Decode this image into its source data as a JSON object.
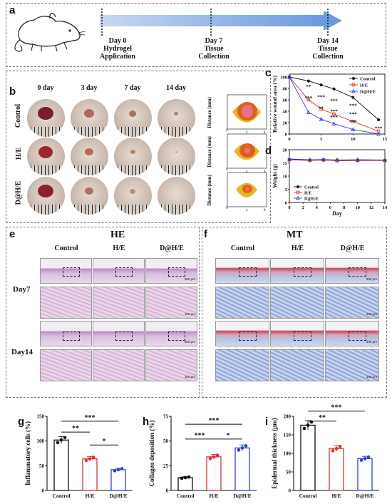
{
  "panels": {
    "a": "a",
    "b": "b",
    "c": "c",
    "d": "d",
    "e": "e",
    "f": "f",
    "g": "g",
    "h": "h",
    "i": "i"
  },
  "timeline": {
    "steps": [
      {
        "line1": "Day 0",
        "line2": "Hydrogel",
        "line3": "Application"
      },
      {
        "line1": "Day 7",
        "line2": "Tissue",
        "line3": "Collection"
      },
      {
        "line1": "Day 14",
        "line2": "Tissue",
        "line3": "Collection"
      }
    ]
  },
  "photos": {
    "cols": [
      "0 day",
      "3 day",
      "7 day",
      "14 day"
    ],
    "rows": [
      "Control",
      "H/E",
      "D@H/E"
    ],
    "contour_ylabel": "Distance (mm)",
    "contour_ticks": [
      "0",
      "4",
      "8"
    ]
  },
  "histology": {
    "he_title": "HE",
    "mt_title": "MT",
    "groups": [
      "Control",
      "H/E",
      "D@H/E"
    ],
    "days": [
      "Day7",
      "Day14"
    ],
    "scale_top": "300 μm",
    "scale_bottom": "100 μm"
  },
  "colors": {
    "control": "#111111",
    "he": "#e03030",
    "dhe": "#2f3fe0",
    "contour_outer": "#e8b820",
    "contour_mid": "#e0601a",
    "contour_inner": "#e8708a"
  },
  "chart_data": [
    {
      "id": "c",
      "type": "line",
      "ylabel": "Relative wound area (%)",
      "xlabel": "",
      "x": [
        0,
        3,
        5,
        7,
        10,
        14
      ],
      "xticks": [
        "0",
        "5",
        "10",
        "15"
      ],
      "yticks": [
        "0",
        "20",
        "40",
        "60",
        "80",
        "100"
      ],
      "xlim": [
        0,
        15
      ],
      "ylim": [
        0,
        105
      ],
      "series": [
        {
          "name": "Control",
          "values": [
            100,
            93,
            86,
            79,
            64,
            25
          ]
        },
        {
          "name": "H/E",
          "values": [
            100,
            60,
            44,
            35,
            22,
            5
          ]
        },
        {
          "name": "D@H/E",
          "values": [
            100,
            38,
            26,
            18,
            8,
            0
          ]
        }
      ],
      "annotations": [
        "**",
        "***",
        "***",
        "**",
        "***",
        "***",
        "***",
        "***",
        "***",
        "***",
        "***"
      ],
      "legend": "top-right"
    },
    {
      "id": "d",
      "type": "line",
      "ylabel": "Weight (g)",
      "xlabel": "Day",
      "x": [
        0,
        3,
        5,
        7,
        10,
        14
      ],
      "xticks": [
        "0",
        "2",
        "4",
        "6",
        "8",
        "10",
        "12",
        "14"
      ],
      "yticks": [
        "0",
        "5",
        "10",
        "15",
        "20"
      ],
      "xlim": [
        0,
        14
      ],
      "ylim": [
        0,
        20
      ],
      "series": [
        {
          "name": "Control",
          "values": [
            16.3,
            16.1,
            16.0,
            16.1,
            16.0,
            16.0
          ]
        },
        {
          "name": "H/E",
          "values": [
            16.2,
            15.9,
            16.1,
            15.8,
            15.9,
            15.9
          ]
        },
        {
          "name": "D@H/E",
          "values": [
            16.5,
            16.2,
            16.3,
            16.1,
            16.2,
            16.1
          ]
        }
      ],
      "legend": "bottom-right"
    },
    {
      "id": "g",
      "type": "bar",
      "ylabel": "Inflammatory cells (%)",
      "categories": [
        "Control",
        "H/E",
        "D@H/E"
      ],
      "values": [
        102,
        64,
        42
      ],
      "yticks": [
        "0",
        "50",
        "100",
        "150"
      ],
      "ylim": [
        0,
        150
      ],
      "sig": [
        "***",
        "**",
        "*"
      ]
    },
    {
      "id": "h",
      "type": "bar",
      "ylabel": "Collagen deposition (%)",
      "categories": [
        "Control",
        "H/E",
        "D@H/E"
      ],
      "values": [
        13,
        34,
        43
      ],
      "yticks": [
        "0",
        "25",
        "50",
        "75"
      ],
      "ylim": [
        0,
        75
      ],
      "sig": [
        "***",
        "***",
        "*"
      ]
    },
    {
      "id": "i",
      "type": "bar",
      "ylabel": "Epidermal thickness (μm)",
      "categories": [
        "Control",
        "H/E",
        "D@H/E"
      ],
      "values": [
        176,
        113,
        86
      ],
      "yticks": [
        "0",
        "50",
        "100",
        "150",
        "200"
      ],
      "ylim": [
        0,
        200
      ],
      "sig": [
        "***",
        "**"
      ]
    }
  ]
}
